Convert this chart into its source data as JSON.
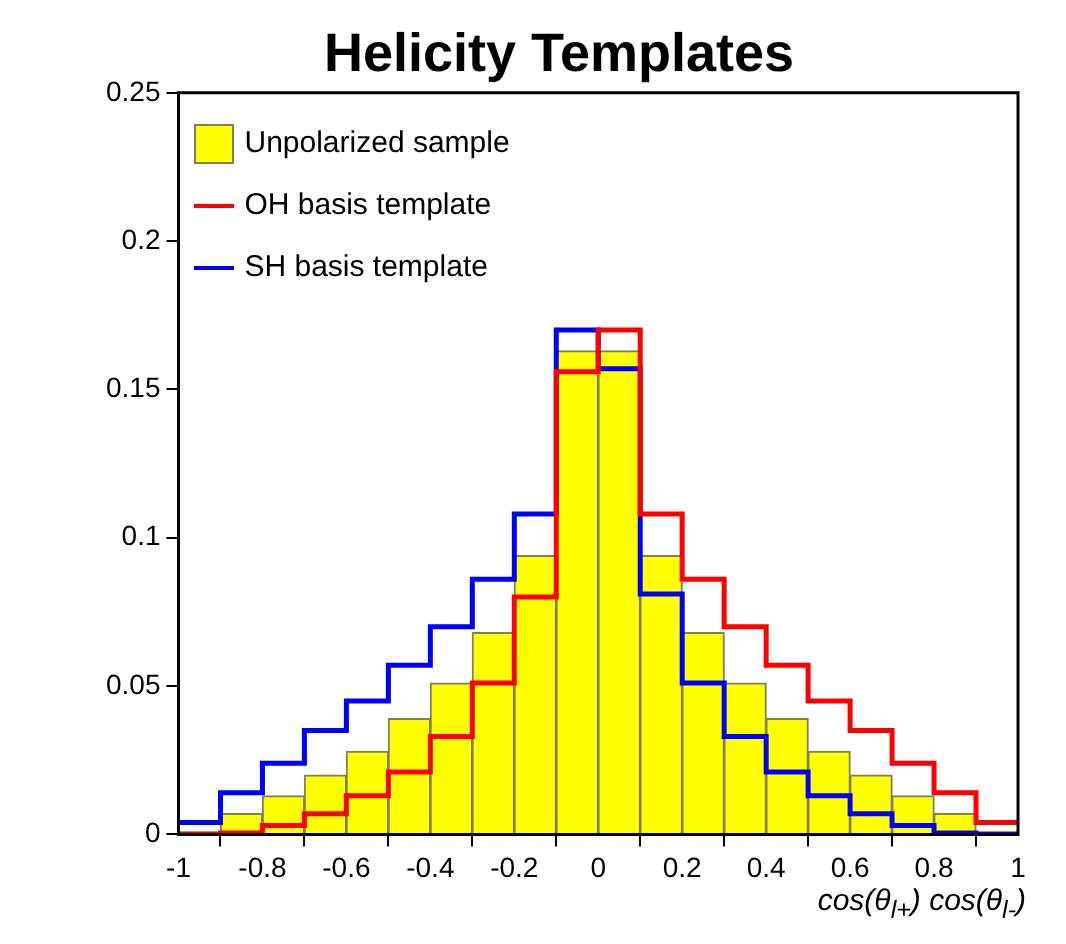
{
  "chart_data": {
    "type": "histogram",
    "title": "Helicity Templates",
    "xlabel": "cos(θ$_{l+}$) cos(θ$_{l-}$)",
    "bins": [
      -1,
      -0.9,
      -0.8,
      -0.7,
      -0.6,
      -0.5,
      -0.4,
      -0.3,
      -0.2,
      -0.1,
      0,
      0.1,
      0.2,
      0.3,
      0.4,
      0.5,
      0.6,
      0.7,
      0.8,
      0.9,
      1
    ],
    "series": [
      {
        "name": "Unpolarized sample",
        "type": "histogram",
        "color": "#ffff00",
        "values": [
          0.001,
          0.007,
          0.013,
          0.02,
          0.028,
          0.039,
          0.051,
          0.068,
          0.094,
          0.163,
          0.163,
          0.094,
          0.068,
          0.051,
          0.039,
          0.028,
          0.02,
          0.013,
          0.007,
          0.001
        ]
      },
      {
        "name": "OH basis template",
        "type": "step",
        "color": "#ff0000",
        "x": [
          -1,
          -0.9,
          -0.8,
          -0.7,
          -0.6,
          -0.5,
          -0.4,
          -0.3,
          -0.2,
          -0.1,
          0,
          0.1,
          0.2,
          0.3,
          0.4,
          0.5,
          0.6,
          0.7,
          0.8,
          0.9,
          1
        ],
        "values": [
          0,
          0.0005,
          0.003,
          0.007,
          0.013,
          0.021,
          0.033,
          0.051,
          0.08,
          0.156,
          0.17,
          0.108,
          0.086,
          0.07,
          0.057,
          0.045,
          0.035,
          0.024,
          0.014,
          0.004,
          0.004
        ]
      },
      {
        "name": "SH basis template",
        "type": "step",
        "color": "#0000ff",
        "x": [
          -1,
          -0.9,
          -0.8,
          -0.7,
          -0.6,
          -0.5,
          -0.4,
          -0.3,
          -0.2,
          -0.1,
          0,
          0.1,
          0.2,
          0.3,
          0.4,
          0.5,
          0.6,
          0.7,
          0.8,
          0.9,
          1
        ],
        "values": [
          0.004,
          0.014,
          0.024,
          0.035,
          0.045,
          0.057,
          0.07,
          0.086,
          0.108,
          0.17,
          0.157,
          0.081,
          0.051,
          0.033,
          0.021,
          0.013,
          0.007,
          0.003,
          0.0005,
          0,
          0
        ]
      }
    ],
    "xlim": [
      -1,
      1
    ],
    "ylim": [
      0,
      0.25
    ],
    "xticks": [
      {
        "value": -1,
        "label": "-1"
      },
      {
        "value": -0.8,
        "label": "-0.8"
      },
      {
        "value": -0.6,
        "label": "-0.6"
      },
      {
        "value": -0.4,
        "label": "-0.4"
      },
      {
        "value": -0.2,
        "label": "-0.2"
      },
      {
        "value": 0,
        "label": "0"
      },
      {
        "value": 0.2,
        "label": "0.2"
      },
      {
        "value": 0.4,
        "label": "0.4"
      },
      {
        "value": 0.6,
        "label": "0.6"
      },
      {
        "value": 0.8,
        "label": "0.8"
      },
      {
        "value": 1,
        "label": "1"
      }
    ],
    "yticks": [
      {
        "value": 0,
        "label": "0"
      },
      {
        "value": 0.05,
        "label": "0.05"
      },
      {
        "value": 0.1,
        "label": "0.1"
      },
      {
        "value": 0.15,
        "label": "0.15"
      },
      {
        "value": 0.2,
        "label": "0.2"
      },
      {
        "value": 0.25,
        "label": "0.25"
      }
    ],
    "legend": "top left",
    "grid": false
  }
}
